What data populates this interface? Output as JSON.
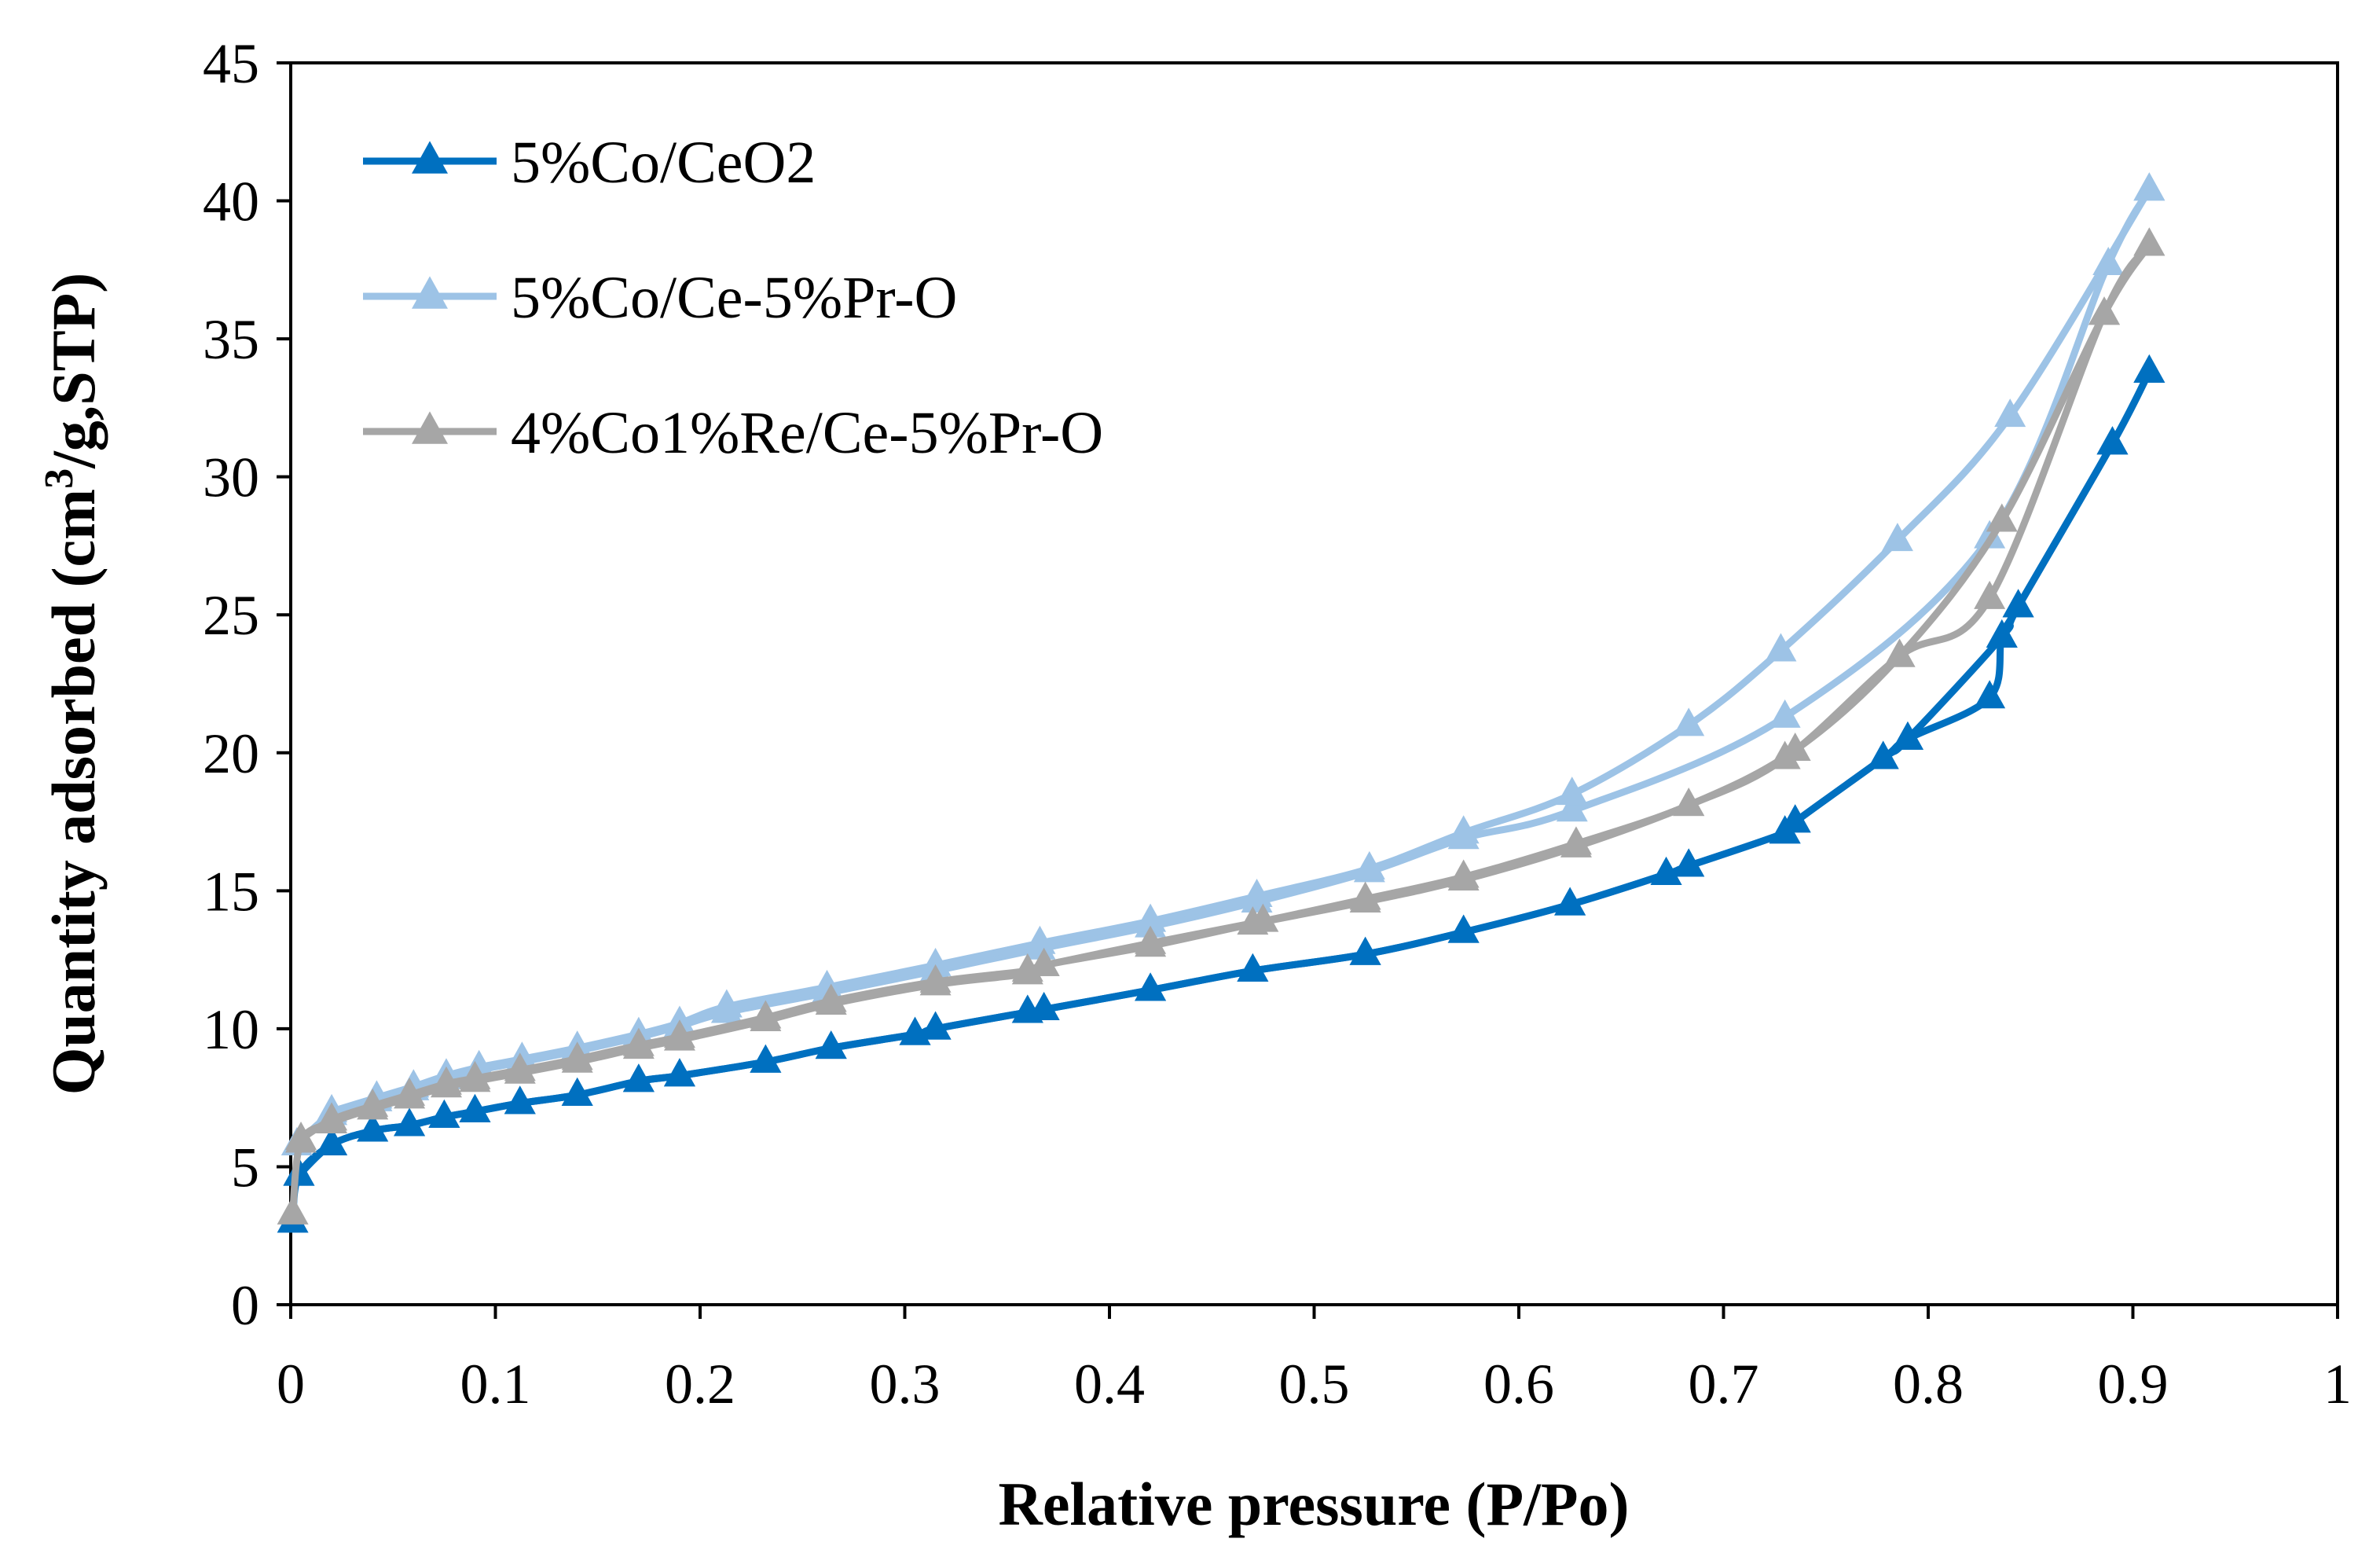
{
  "chart_data": {
    "type": "line",
    "title": "",
    "xlabel": "Relative pressure (P/Po)",
    "ylabel_parts": {
      "prefix": "Quantity adsorbed (cm",
      "superscript": "3",
      "suffix": "/g,STP)"
    },
    "xlim": [
      0,
      1
    ],
    "ylim": [
      0,
      45
    ],
    "xticks": [
      0,
      0.1,
      0.2,
      0.3,
      0.4,
      0.5,
      0.6,
      0.7,
      0.8,
      0.9,
      1
    ],
    "xtick_labels": [
      "0",
      "0.1",
      "0.2",
      "0.3",
      "0.4",
      "0.5",
      "0.6",
      "0.7",
      "0.8",
      "0.9",
      "1"
    ],
    "yticks": [
      0,
      5,
      10,
      15,
      20,
      25,
      30,
      35,
      40,
      45
    ],
    "ytick_labels": [
      "0",
      "5",
      "10",
      "15",
      "20",
      "25",
      "30",
      "35",
      "40",
      "45"
    ],
    "grid": false,
    "legend_position": "top-left",
    "marker": "triangle",
    "series": [
      {
        "name": "5%Co/CeO2",
        "color": "#0070C0",
        "adsorption": {
          "x": [
            0.001,
            0.004,
            0.02,
            0.04,
            0.058,
            0.075,
            0.09,
            0.112,
            0.14,
            0.17,
            0.19,
            0.232,
            0.264,
            0.305,
            0.315,
            0.36,
            0.368,
            0.42,
            0.47,
            0.525,
            0.573,
            0.625,
            0.672,
            0.683,
            0.73,
            0.735,
            0.778,
            0.79,
            0.83,
            0.836,
            0.844,
            0.89,
            0.908
          ],
          "y": [
            3.0,
            4.7,
            5.8,
            6.3,
            6.5,
            6.8,
            7.0,
            7.3,
            7.6,
            8.1,
            8.3,
            8.8,
            9.3,
            9.8,
            10.0,
            10.6,
            10.7,
            11.4,
            12.1,
            12.7,
            13.5,
            14.5,
            15.6,
            15.9,
            17.1,
            17.5,
            19.8,
            20.5,
            22.0,
            24.2,
            25.3,
            31.2,
            33.8
          ]
        },
        "desorption": {
          "x": [
            0.908,
            0.89,
            0.844,
            0.836,
            0.79,
            0.778,
            0.735,
            0.73,
            0.683,
            0.672,
            0.625,
            0.573,
            0.525,
            0.47,
            0.42,
            0.368,
            0.36,
            0.315,
            0.305,
            0.264,
            0.232,
            0.19,
            0.17,
            0.14,
            0.112,
            0.09,
            0.075,
            0.058,
            0.04,
            0.02,
            0.004
          ],
          "y": [
            33.8,
            31.2,
            25.3,
            24.2,
            20.5,
            19.8,
            17.5,
            17.1,
            15.9,
            15.6,
            14.5,
            13.5,
            12.7,
            12.1,
            11.4,
            10.7,
            10.6,
            10.0,
            9.8,
            9.3,
            8.8,
            8.3,
            8.1,
            7.6,
            7.3,
            7.0,
            6.8,
            6.5,
            6.3,
            5.8,
            4.7
          ]
        }
      },
      {
        "name": "5%Co/Ce-5%Pr-O",
        "color": "#9DC3E6",
        "adsorption": {
          "x": [
            0.003,
            0.02,
            0.042,
            0.06,
            0.076,
            0.092,
            0.113,
            0.14,
            0.17,
            0.19,
            0.213,
            0.262,
            0.315,
            0.366,
            0.42,
            0.472,
            0.527,
            0.573,
            0.626,
            0.73,
            0.83,
            0.888,
            0.908
          ],
          "y": [
            5.8,
            6.9,
            7.4,
            7.8,
            8.2,
            8.5,
            8.8,
            9.2,
            9.7,
            10.1,
            10.6,
            11.3,
            12.1,
            12.9,
            13.7,
            14.6,
            15.7,
            16.9,
            17.9,
            21.3,
            27.8,
            37.7,
            40.4
          ]
        },
        "desorption": {
          "x": [
            0.908,
            0.84,
            0.785,
            0.728,
            0.683,
            0.626,
            0.573,
            0.527,
            0.472,
            0.42,
            0.366,
            0.315,
            0.262,
            0.213,
            0.19,
            0.17,
            0.14,
            0.113,
            0.092,
            0.076,
            0.06,
            0.042,
            0.02
          ],
          "y": [
            40.4,
            32.2,
            27.7,
            23.7,
            21.0,
            18.5,
            17.1,
            15.8,
            14.8,
            13.9,
            13.1,
            12.3,
            11.5,
            10.8,
            10.2,
            9.8,
            9.3,
            8.9,
            8.6,
            8.3,
            7.9,
            7.5,
            7.0
          ]
        }
      },
      {
        "name": "4%Co1%Re/Ce-5%Pr-O",
        "color": "#A6A6A6",
        "adsorption": {
          "x": [
            0.001,
            0.005,
            0.02,
            0.04,
            0.058,
            0.076,
            0.09,
            0.112,
            0.14,
            0.17,
            0.19,
            0.232,
            0.264,
            0.315,
            0.36,
            0.368,
            0.42,
            0.47,
            0.525,
            0.573,
            0.628,
            0.683,
            0.73,
            0.786,
            0.83,
            0.886,
            0.908
          ],
          "y": [
            3.3,
            5.9,
            6.6,
            7.1,
            7.5,
            7.9,
            8.1,
            8.4,
            8.8,
            9.3,
            9.6,
            10.3,
            10.9,
            11.6,
            12.0,
            12.3,
            13.0,
            13.8,
            14.6,
            15.4,
            16.6,
            18.1,
            19.8,
            23.5,
            25.6,
            35.9,
            38.4
          ]
        },
        "desorption": {
          "x": [
            0.908,
            0.886,
            0.836,
            0.786,
            0.735,
            0.683,
            0.628,
            0.573,
            0.525,
            0.475,
            0.42,
            0.368,
            0.36,
            0.315,
            0.264,
            0.232,
            0.19,
            0.17,
            0.14,
            0.112,
            0.09,
            0.076,
            0.058,
            0.04,
            0.02,
            0.005
          ],
          "y": [
            38.4,
            35.9,
            28.4,
            23.5,
            20.1,
            18.1,
            16.7,
            15.5,
            14.7,
            13.9,
            13.1,
            12.3,
            12.1,
            11.7,
            11.0,
            10.4,
            9.7,
            9.4,
            8.9,
            8.5,
            8.2,
            8.0,
            7.6,
            7.2,
            6.7,
            6.0
          ]
        }
      }
    ]
  }
}
